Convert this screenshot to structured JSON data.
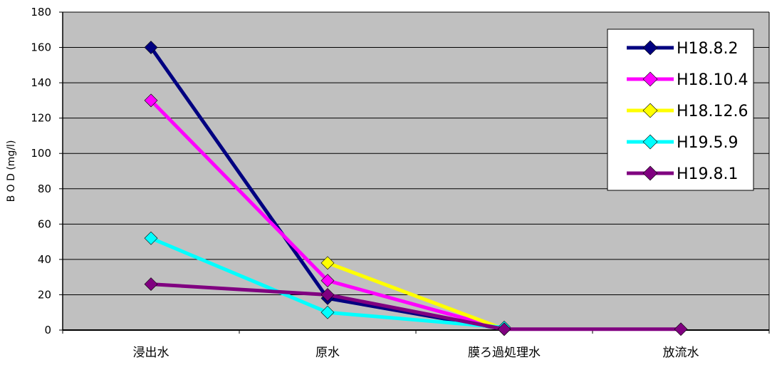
{
  "chart_data": {
    "type": "line",
    "title": "",
    "xlabel": "",
    "ylabel": "B O D (mg/l)",
    "ylim": [
      0,
      180
    ],
    "yticks": [
      0,
      20,
      40,
      60,
      80,
      100,
      120,
      140,
      160,
      180
    ],
    "grid": true,
    "legend_position": "top-right",
    "background_color": "#c0c0c0",
    "categories": [
      "浸出水",
      "原水",
      "膜ろ過処理水",
      "放流水"
    ],
    "series": [
      {
        "name": "H18.8.2",
        "color": "#000080",
        "values": [
          160,
          18,
          0.5,
          null
        ]
      },
      {
        "name": "H18.10.4",
        "color": "#ff00ff",
        "values": [
          130,
          28,
          0.5,
          null
        ]
      },
      {
        "name": "H18.12.6",
        "color": "#ffff00",
        "values": [
          null,
          38,
          0.5,
          null
        ]
      },
      {
        "name": "H19.5.9",
        "color": "#00ffff",
        "values": [
          52,
          10,
          1.5,
          null
        ]
      },
      {
        "name": "H19.8.1",
        "color": "#800080",
        "values": [
          26,
          20,
          0.5,
          0.5
        ]
      }
    ]
  }
}
